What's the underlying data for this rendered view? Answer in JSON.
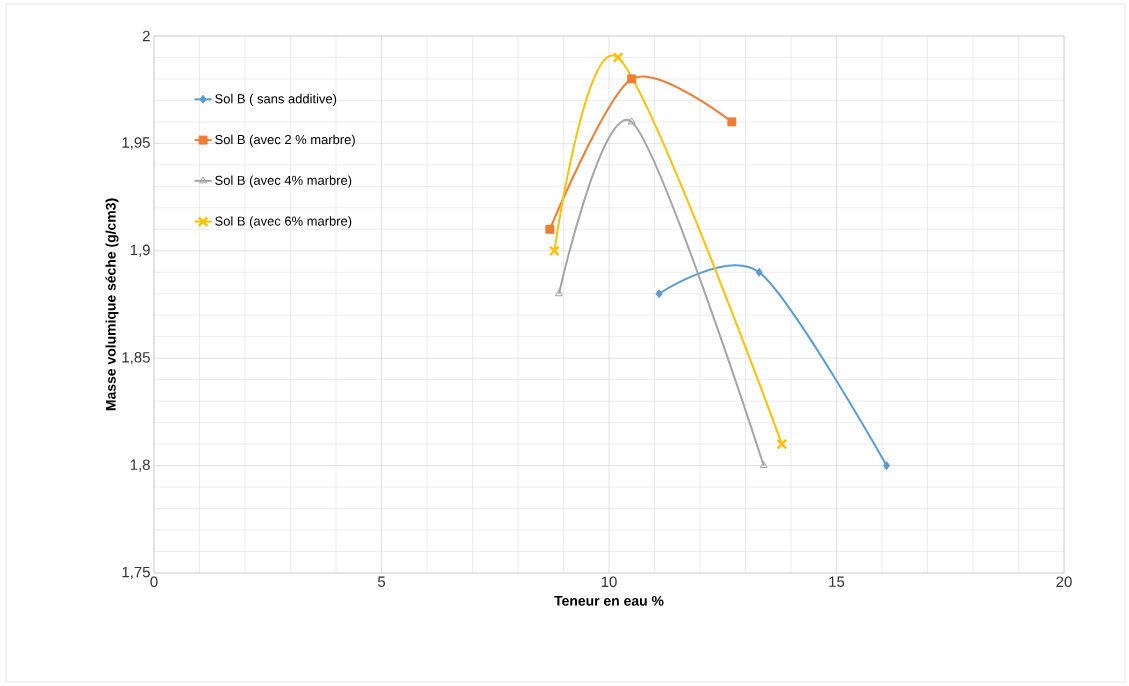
{
  "chart_data": {
    "type": "line",
    "xlabel": "Teneur en eau %",
    "ylabel": "Masse volumique séche (g/cm3)",
    "xlim": [
      0,
      20
    ],
    "xticks": [
      0,
      5,
      10,
      15,
      20
    ],
    "ylim": [
      1.75,
      2
    ],
    "yticks": [
      {
        "value": 1.75,
        "label": "1,75"
      },
      {
        "value": 1.8,
        "label": "1,8"
      },
      {
        "value": 1.85,
        "label": "1,85"
      },
      {
        "value": 1.9,
        "label": "1,9"
      },
      {
        "value": 1.95,
        "label": "1,95"
      },
      {
        "value": 2,
        "label": "2"
      }
    ],
    "grid": true,
    "legend": "top left",
    "series": [
      {
        "name": "Sol B ( sans additive)",
        "color": "#5b9bd5",
        "marker": "diamond",
        "x": [
          11.1,
          13.3,
          16.1
        ],
        "values": [
          1.88,
          1.89,
          1.8
        ]
      },
      {
        "name": "Sol B (avec 2 % marbre)",
        "color": "#ed7d31",
        "marker": "square",
        "x": [
          8.7,
          10.5,
          12.7
        ],
        "values": [
          1.91,
          1.98,
          1.96
        ]
      },
      {
        "name": "Sol B (avec 4% marbre)",
        "color": "#a5a5a5",
        "marker": "triangle",
        "x": [
          8.9,
          10.5,
          13.4
        ],
        "values": [
          1.88,
          1.96,
          1.8
        ]
      },
      {
        "name": "Sol B (avec 6% marbre)",
        "color": "#ffc000",
        "marker": "cross",
        "x": [
          8.8,
          10.2,
          13.8
        ],
        "values": [
          1.9,
          1.99,
          1.81
        ]
      }
    ]
  }
}
